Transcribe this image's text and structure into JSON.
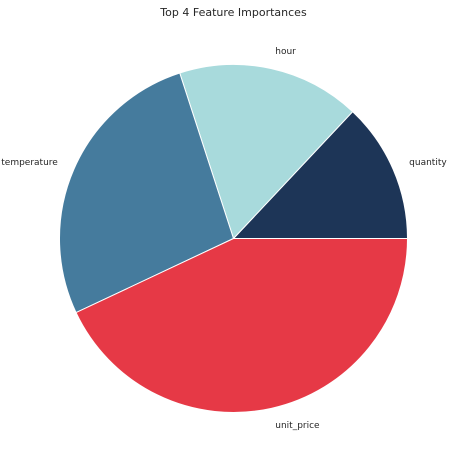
{
  "chart_data": {
    "type": "pie",
    "title": "Top 4 Feature Importances",
    "start_angle_deg": 0,
    "direction": "counterclockwise",
    "slices": [
      {
        "label": "quantity",
        "value": 13.0,
        "color": "#1d3557"
      },
      {
        "label": "hour",
        "value": 17.0,
        "color": "#a8dadc"
      },
      {
        "label": "temperature",
        "value": 27.0,
        "color": "#457b9d"
      },
      {
        "label": "unit_price",
        "value": 43.0,
        "color": "#e63946"
      }
    ]
  }
}
